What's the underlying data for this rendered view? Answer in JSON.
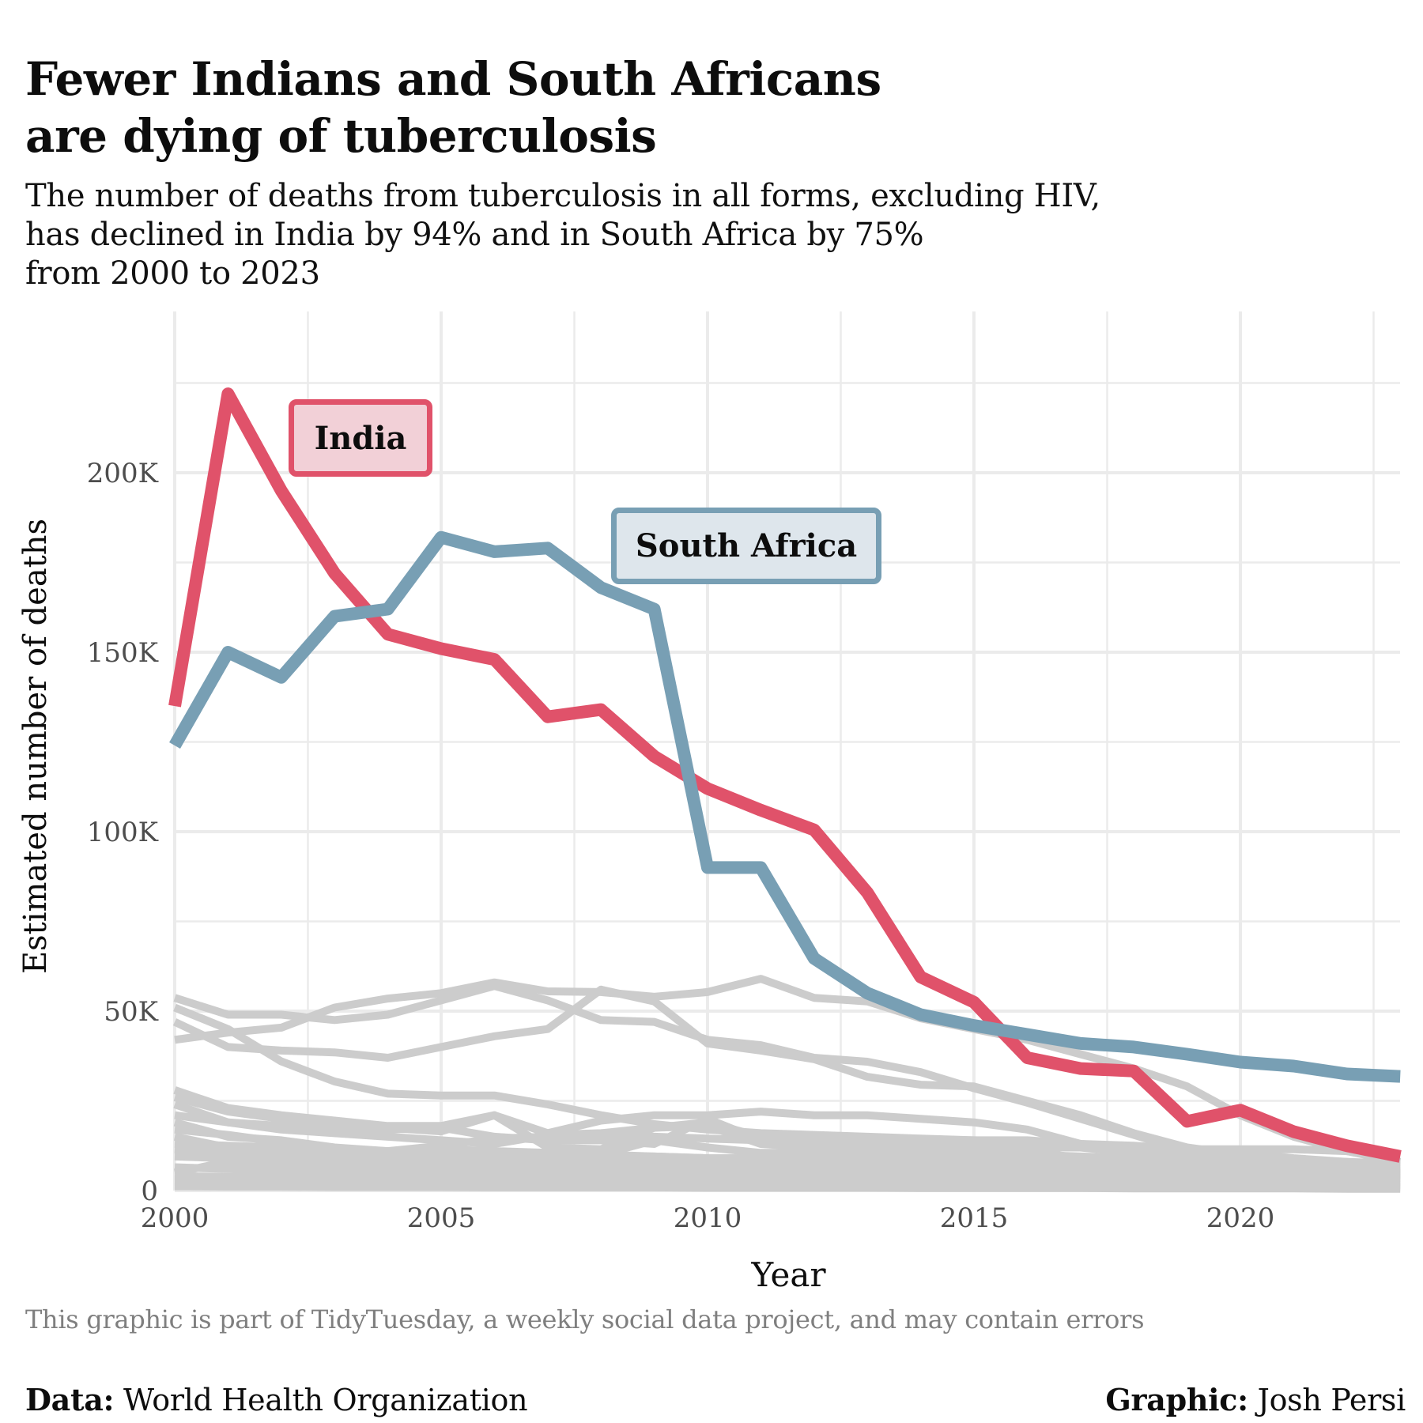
{
  "title_lines": [
    "Fewer Indians and South Africans",
    "are dying of tuberculosis"
  ],
  "subtitle_lines": [
    "The number of deaths from tuberculosis in all forms, excluding HIV,",
    "has declined in India by 94% and in South Africa by 75%",
    "from 2000 to 2023"
  ],
  "caption": "This graphic is part of TidyTuesday, a weekly social data project, and may contain errors",
  "footer": {
    "data_label": "Data:",
    "data_value": " World Health Organization",
    "graphic_label": "Graphic:",
    "graphic_value": " Josh Persi"
  },
  "colors": {
    "india": "#e0526a",
    "india_fill": "#f2d0d7",
    "south_africa": "#789fb4",
    "south_africa_fill": "#dee6ec",
    "other": "#cccccc",
    "grid": "#ebebeb",
    "tick_text": "#4d4d4d"
  },
  "chart_data": {
    "type": "line",
    "title": "Fewer Indians and South Africans are dying of tuberculosis",
    "xlabel": "Year",
    "ylabel": "Estimated number of deaths",
    "xlim": [
      2000,
      2023
    ],
    "ylim": [
      0,
      245000
    ],
    "x_ticks": [
      2000,
      2005,
      2010,
      2015,
      2020
    ],
    "x_tick_labels": [
      "2000",
      "2005",
      "2010",
      "2015",
      "2020"
    ],
    "y_ticks": [
      0,
      50000,
      100000,
      150000,
      200000
    ],
    "y_tick_labels": [
      "0",
      "50K",
      "100K",
      "150K",
      "200K"
    ],
    "grid": true,
    "x": [
      2000,
      2001,
      2002,
      2003,
      2004,
      2005,
      2006,
      2007,
      2008,
      2009,
      2010,
      2011,
      2012,
      2013,
      2014,
      2015,
      2016,
      2017,
      2018,
      2019,
      2020,
      2021,
      2022,
      2023
    ],
    "highlight_series": [
      {
        "name": "India",
        "label": "India",
        "values": [
          135000,
          222000,
          195000,
          172000,
          155000,
          151000,
          148000,
          132000,
          134000,
          121000,
          112000,
          106000,
          100500,
          83000,
          59500,
          52500,
          37000,
          34000,
          33300,
          19300,
          22400,
          16400,
          12500,
          9500
        ]
      },
      {
        "name": "South Africa",
        "label": "South Africa",
        "values": [
          124000,
          150000,
          143000,
          160000,
          162000,
          182000,
          178000,
          179000,
          168000,
          162000,
          90000,
          90000,
          64700,
          55000,
          49000,
          46000,
          43500,
          41000,
          40000,
          38000,
          35800,
          34700,
          32500,
          31800
        ]
      }
    ],
    "other_series": [
      {
        "name": "Other 1",
        "values": [
          53700,
          49000,
          49000,
          47500,
          49000,
          53000,
          57000,
          53000,
          47500,
          47000,
          42000,
          40500,
          37000,
          35900,
          33000,
          28500,
          24500,
          20000,
          15500,
          11000,
          8000,
          6500,
          5500,
          5000
        ]
      },
      {
        "name": "Other 2",
        "values": [
          42000,
          44000,
          45400,
          51000,
          53500,
          55000,
          58000,
          55500,
          55300,
          54000,
          55300,
          59000,
          53700,
          52700,
          48000,
          45000,
          42000,
          38000,
          34000,
          29000,
          21000,
          15000,
          11000,
          8000
        ]
      },
      {
        "name": "Other 3",
        "values": [
          47000,
          40000,
          39000,
          38500,
          37000,
          40000,
          43000,
          45000,
          56000,
          52700,
          41000,
          39000,
          36600,
          31700,
          29500,
          29000,
          25000,
          21000,
          16000,
          12000,
          10000,
          8500,
          7500,
          7000
        ]
      },
      {
        "name": "Other 4",
        "values": [
          51000,
          45000,
          36000,
          30400,
          27000,
          26500,
          26500,
          24000,
          21000,
          18500,
          17000,
          16000,
          15500,
          15000,
          14500,
          14000,
          13500,
          12000,
          10500,
          9000,
          8000,
          7000,
          6500,
          6000
        ]
      },
      {
        "name": "Other 5",
        "values": [
          28000,
          23000,
          21000,
          19500,
          18000,
          18000,
          21000,
          16000,
          19500,
          21000,
          21000,
          22000,
          21000,
          21000,
          20000,
          19000,
          17000,
          13000,
          12500,
          11500,
          11500,
          11500,
          11000,
          10000
        ]
      },
      {
        "name": "Other 6",
        "values": [
          26000,
          22000,
          20000,
          17500,
          17000,
          17500,
          15000,
          14000,
          14000,
          13000,
          20000,
          14000,
          14000,
          14000,
          14000,
          14000,
          14000,
          13000,
          12000,
          10000,
          9000,
          8500,
          8000,
          7500
        ]
      },
      {
        "name": "Other 7",
        "values": [
          24000,
          19000,
          17000,
          16000,
          15000,
          14000,
          13000,
          15500,
          16000,
          17500,
          18000,
          13000,
          12000,
          11500,
          11000,
          11000,
          11000,
          9000,
          8000,
          7500,
          7000,
          6500,
          6000,
          5500
        ]
      },
      {
        "name": "Other 8",
        "values": [
          21000,
          19000,
          18000,
          18500,
          17500,
          16500,
          21000,
          12000,
          11500,
          17500,
          19000,
          15000,
          11500,
          11000,
          10500,
          10500,
          10000,
          9500,
          9000,
          8500,
          7000,
          6500,
          5500,
          5000
        ]
      },
      {
        "name": "Other 9",
        "values": [
          19000,
          15000,
          14000,
          12000,
          11000,
          12500,
          14500,
          15000,
          15000,
          15000,
          14500,
          14000,
          13500,
          13000,
          12500,
          12000,
          12000,
          12000,
          12000,
          11500,
          10500,
          9000,
          8000,
          7000
        ]
      },
      {
        "name": "Other 10",
        "values": [
          17000,
          15500,
          13500,
          11500,
          10500,
          11500,
          11000,
          10500,
          10000,
          14000,
          12000,
          10500,
          10500,
          10000,
          10000,
          10000,
          9500,
          8500,
          7500,
          7000,
          6500,
          6000,
          5500,
          5000
        ]
      },
      {
        "name": "Other 11",
        "values": [
          15000,
          12000,
          11000,
          10000,
          9500,
          9500,
          10000,
          10000,
          9500,
          9500,
          9000,
          9000,
          9000,
          8500,
          8500,
          8500,
          8000,
          7500,
          7000,
          6500,
          6000,
          5500,
          5000,
          4500
        ]
      },
      {
        "name": "Other 12",
        "values": [
          13000,
          12500,
          12000,
          11500,
          11000,
          11000,
          10500,
          10000,
          10000,
          9500,
          9000,
          9000,
          8500,
          8500,
          8000,
          8000,
          7500,
          7000,
          6500,
          6000,
          5500,
          5000,
          4500,
          4000
        ]
      },
      {
        "name": "Other 13",
        "values": [
          11500,
          10500,
          9500,
          9000,
          8500,
          8500,
          8500,
          8500,
          8500,
          8000,
          8000,
          8000,
          7500,
          7500,
          7000,
          7000,
          6500,
          6000,
          5500,
          5000,
          4500,
          4500,
          4000,
          3500
        ]
      },
      {
        "name": "Other 14",
        "values": [
          9500,
          9000,
          8500,
          8000,
          7500,
          7500,
          7500,
          7500,
          7000,
          7000,
          7000,
          6500,
          6500,
          6500,
          6000,
          6000,
          5500,
          5500,
          5000,
          4500,
          4000,
          4000,
          3500,
          3500
        ]
      },
      {
        "name": "Other 15",
        "values": [
          5000,
          8000,
          7500,
          7000,
          6500,
          6500,
          6500,
          6500,
          6000,
          6000,
          6000,
          6000,
          5500,
          5500,
          5500,
          5000,
          5000,
          4500,
          4500,
          4000,
          4000,
          3500,
          3500,
          3000
        ]
      },
      {
        "name": "Other 16",
        "values": [
          6500,
          6000,
          5500,
          5500,
          5000,
          5000,
          5000,
          5000,
          5000,
          4500,
          4500,
          4500,
          4500,
          4000,
          4000,
          4000,
          4000,
          3500,
          3500,
          3000,
          3000,
          3000,
          2500,
          2500
        ]
      },
      {
        "name": "Other 17",
        "values": [
          4000,
          3800,
          3600,
          3500,
          3400,
          3300,
          3200,
          3100,
          3000,
          3000,
          2900,
          2800,
          2700,
          2600,
          2500,
          2400,
          2300,
          2200,
          2100,
          2000,
          1900,
          1800,
          1700,
          1600
        ]
      },
      {
        "name": "Other 18",
        "values": [
          2500,
          2400,
          2300,
          2200,
          2100,
          2000,
          2000,
          1900,
          1900,
          1800,
          1800,
          1700,
          1700,
          1600,
          1600,
          1500,
          1500,
          1400,
          1400,
          1300,
          1300,
          1200,
          1200,
          1100
        ]
      },
      {
        "name": "Other 19",
        "values": [
          1200,
          1100,
          1100,
          1000,
          1000,
          1000,
          900,
          900,
          900,
          900,
          800,
          800,
          800,
          800,
          700,
          700,
          700,
          700,
          600,
          600,
          600,
          600,
          500,
          500
        ]
      }
    ],
    "annotations": [
      {
        "text": "India",
        "series": "India",
        "year": 2004,
        "value": 212000
      },
      {
        "text": "South Africa",
        "series": "South Africa",
        "year": 2010.5,
        "value": 182000
      }
    ]
  }
}
